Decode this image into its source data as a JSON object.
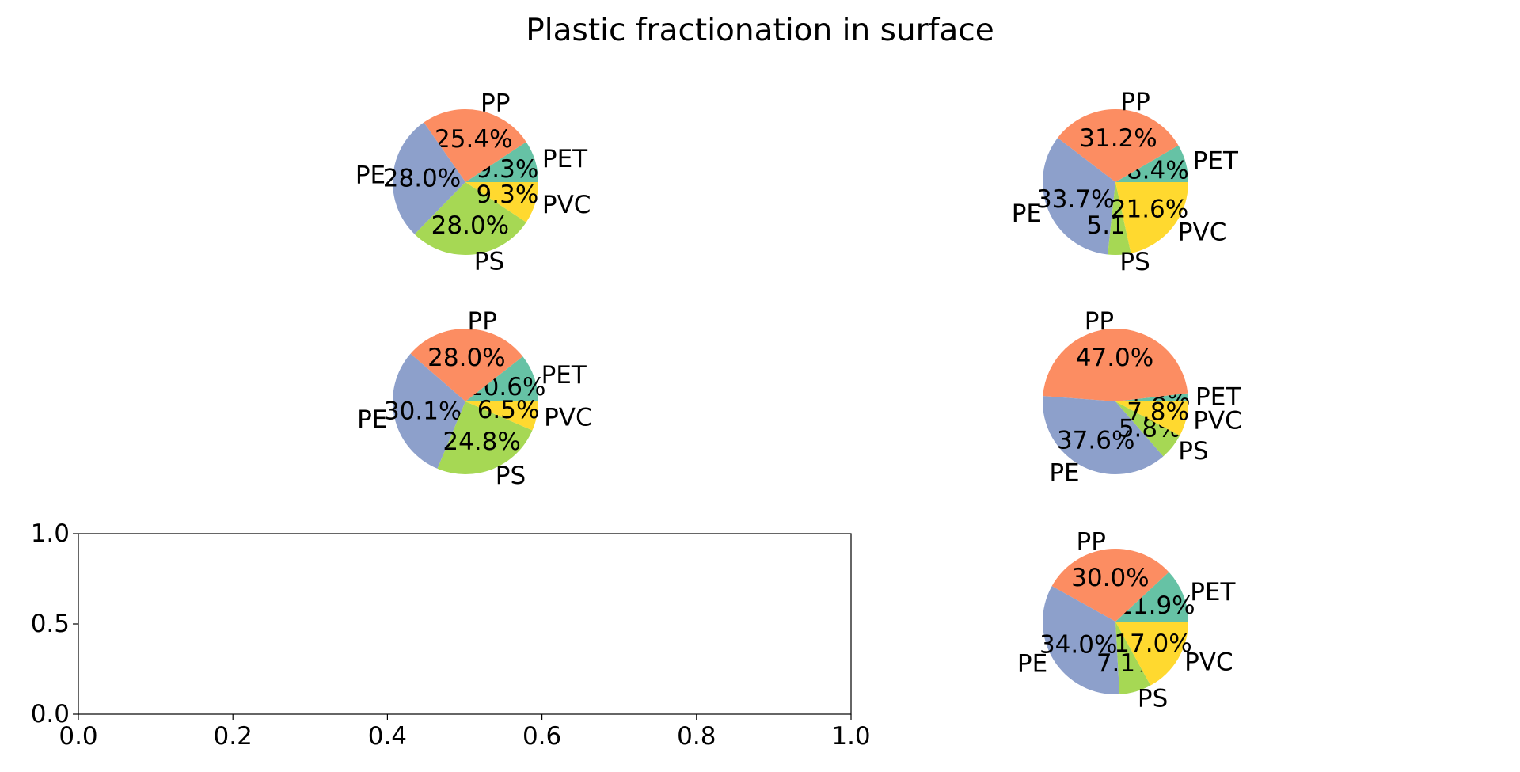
{
  "title": "Plastic fractionation in surface",
  "colors": {
    "PET": "#66c2a5",
    "PP": "#fc8d62",
    "PE": "#8da0cb",
    "PS": "#a6d854",
    "PVC": "#ffd92f"
  },
  "chart_data": [
    {
      "type": "pie",
      "categories": [
        "PET",
        "PP",
        "PE",
        "PS",
        "PVC"
      ],
      "values": [
        9.3,
        25.4,
        28.0,
        28.0,
        9.3
      ],
      "value_labels": [
        "9.3%",
        "25.4%",
        "28.0%",
        "28.0%",
        "9.3%"
      ]
    },
    {
      "type": "pie",
      "categories": [
        "PET",
        "PP",
        "PE",
        "PS",
        "PVC"
      ],
      "values": [
        8.4,
        31.2,
        33.7,
        5.1,
        21.6
      ],
      "value_labels": [
        "8.4%",
        "31.2%",
        "33.7%",
        "5.1%",
        "21.6%"
      ]
    },
    {
      "type": "pie",
      "categories": [
        "PET",
        "PP",
        "PE",
        "PS",
        "PVC"
      ],
      "values": [
        10.6,
        28.0,
        30.1,
        24.8,
        6.5
      ],
      "value_labels": [
        "10.6%",
        "28.0%",
        "30.1%",
        "24.8%",
        "6.5%"
      ]
    },
    {
      "type": "pie",
      "categories": [
        "PET",
        "PP",
        "PE",
        "PS",
        "PVC"
      ],
      "values": [
        1.8,
        47.0,
        37.6,
        5.8,
        7.8
      ],
      "value_labels": [
        "1.8%",
        "47.0%",
        "37.6%",
        "5.8%",
        "7.8%"
      ]
    },
    {
      "type": "line",
      "empty": true,
      "xlim": [
        0.0,
        1.0
      ],
      "ylim": [
        0.0,
        1.0
      ],
      "xticks": [
        "0.0",
        "0.2",
        "0.4",
        "0.6",
        "0.8",
        "1.0"
      ],
      "yticks": [
        "0.0",
        "0.5",
        "1.0"
      ]
    },
    {
      "type": "pie",
      "categories": [
        "PET",
        "PP",
        "PE",
        "PS",
        "PVC"
      ],
      "values": [
        11.9,
        30.0,
        34.0,
        7.1,
        17.0
      ],
      "value_labels": [
        "11.9%",
        "30.0%",
        "34.0%",
        "7.1%",
        "17.0%"
      ]
    }
  ]
}
